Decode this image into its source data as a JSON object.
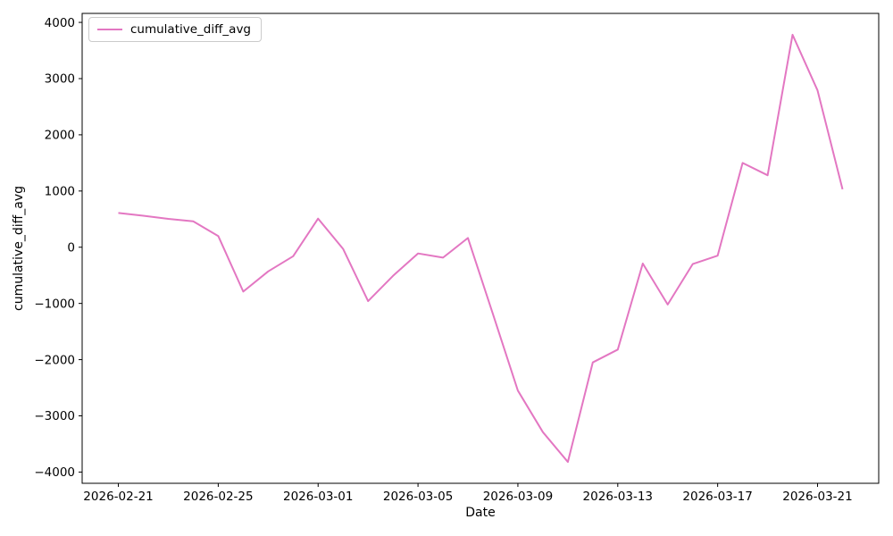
{
  "chart_data": {
    "type": "line",
    "title": "",
    "xlabel": "Date",
    "ylabel": "cumulative_diff_avg",
    "legend_entries": [
      "cumulative_diff_avg"
    ],
    "legend_position": "upper-left",
    "line_color": "#e377c2",
    "background_color": "#ffffff",
    "grid": false,
    "x": [
      "2026-02-21",
      "2026-02-22",
      "2026-02-23",
      "2026-02-24",
      "2026-02-25",
      "2026-02-26",
      "2026-02-27",
      "2026-02-28",
      "2026-03-01",
      "2026-03-02",
      "2026-03-03",
      "2026-03-04",
      "2026-03-05",
      "2026-03-06",
      "2026-03-07",
      "2026-03-08",
      "2026-03-09",
      "2026-03-10",
      "2026-03-11",
      "2026-03-12",
      "2026-03-13",
      "2026-03-14",
      "2026-03-15",
      "2026-03-16",
      "2026-03-17",
      "2026-03-18",
      "2026-03-19",
      "2026-03-20",
      "2026-03-21",
      "2026-03-22"
    ],
    "y": [
      610,
      560,
      505,
      460,
      200,
      -790,
      -430,
      -160,
      510,
      -30,
      -960,
      -510,
      -110,
      -185,
      165,
      -1190,
      -2550,
      -3290,
      -3820,
      -2050,
      -1820,
      -290,
      -1020,
      -300,
      -150,
      1500,
      1280,
      3780,
      2790,
      1030
    ],
    "x_tick_labels": [
      "2026-02-21",
      "2026-02-25",
      "2026-03-01",
      "2026-03-05",
      "2026-03-09",
      "2026-03-13",
      "2026-03-17",
      "2026-03-21"
    ],
    "y_ticks": [
      -4000,
      -3000,
      -2000,
      -1000,
      0,
      1000,
      2000,
      3000,
      4000
    ],
    "ylim": [
      -4200,
      4160
    ],
    "xlim_margin_days": 1.45
  }
}
